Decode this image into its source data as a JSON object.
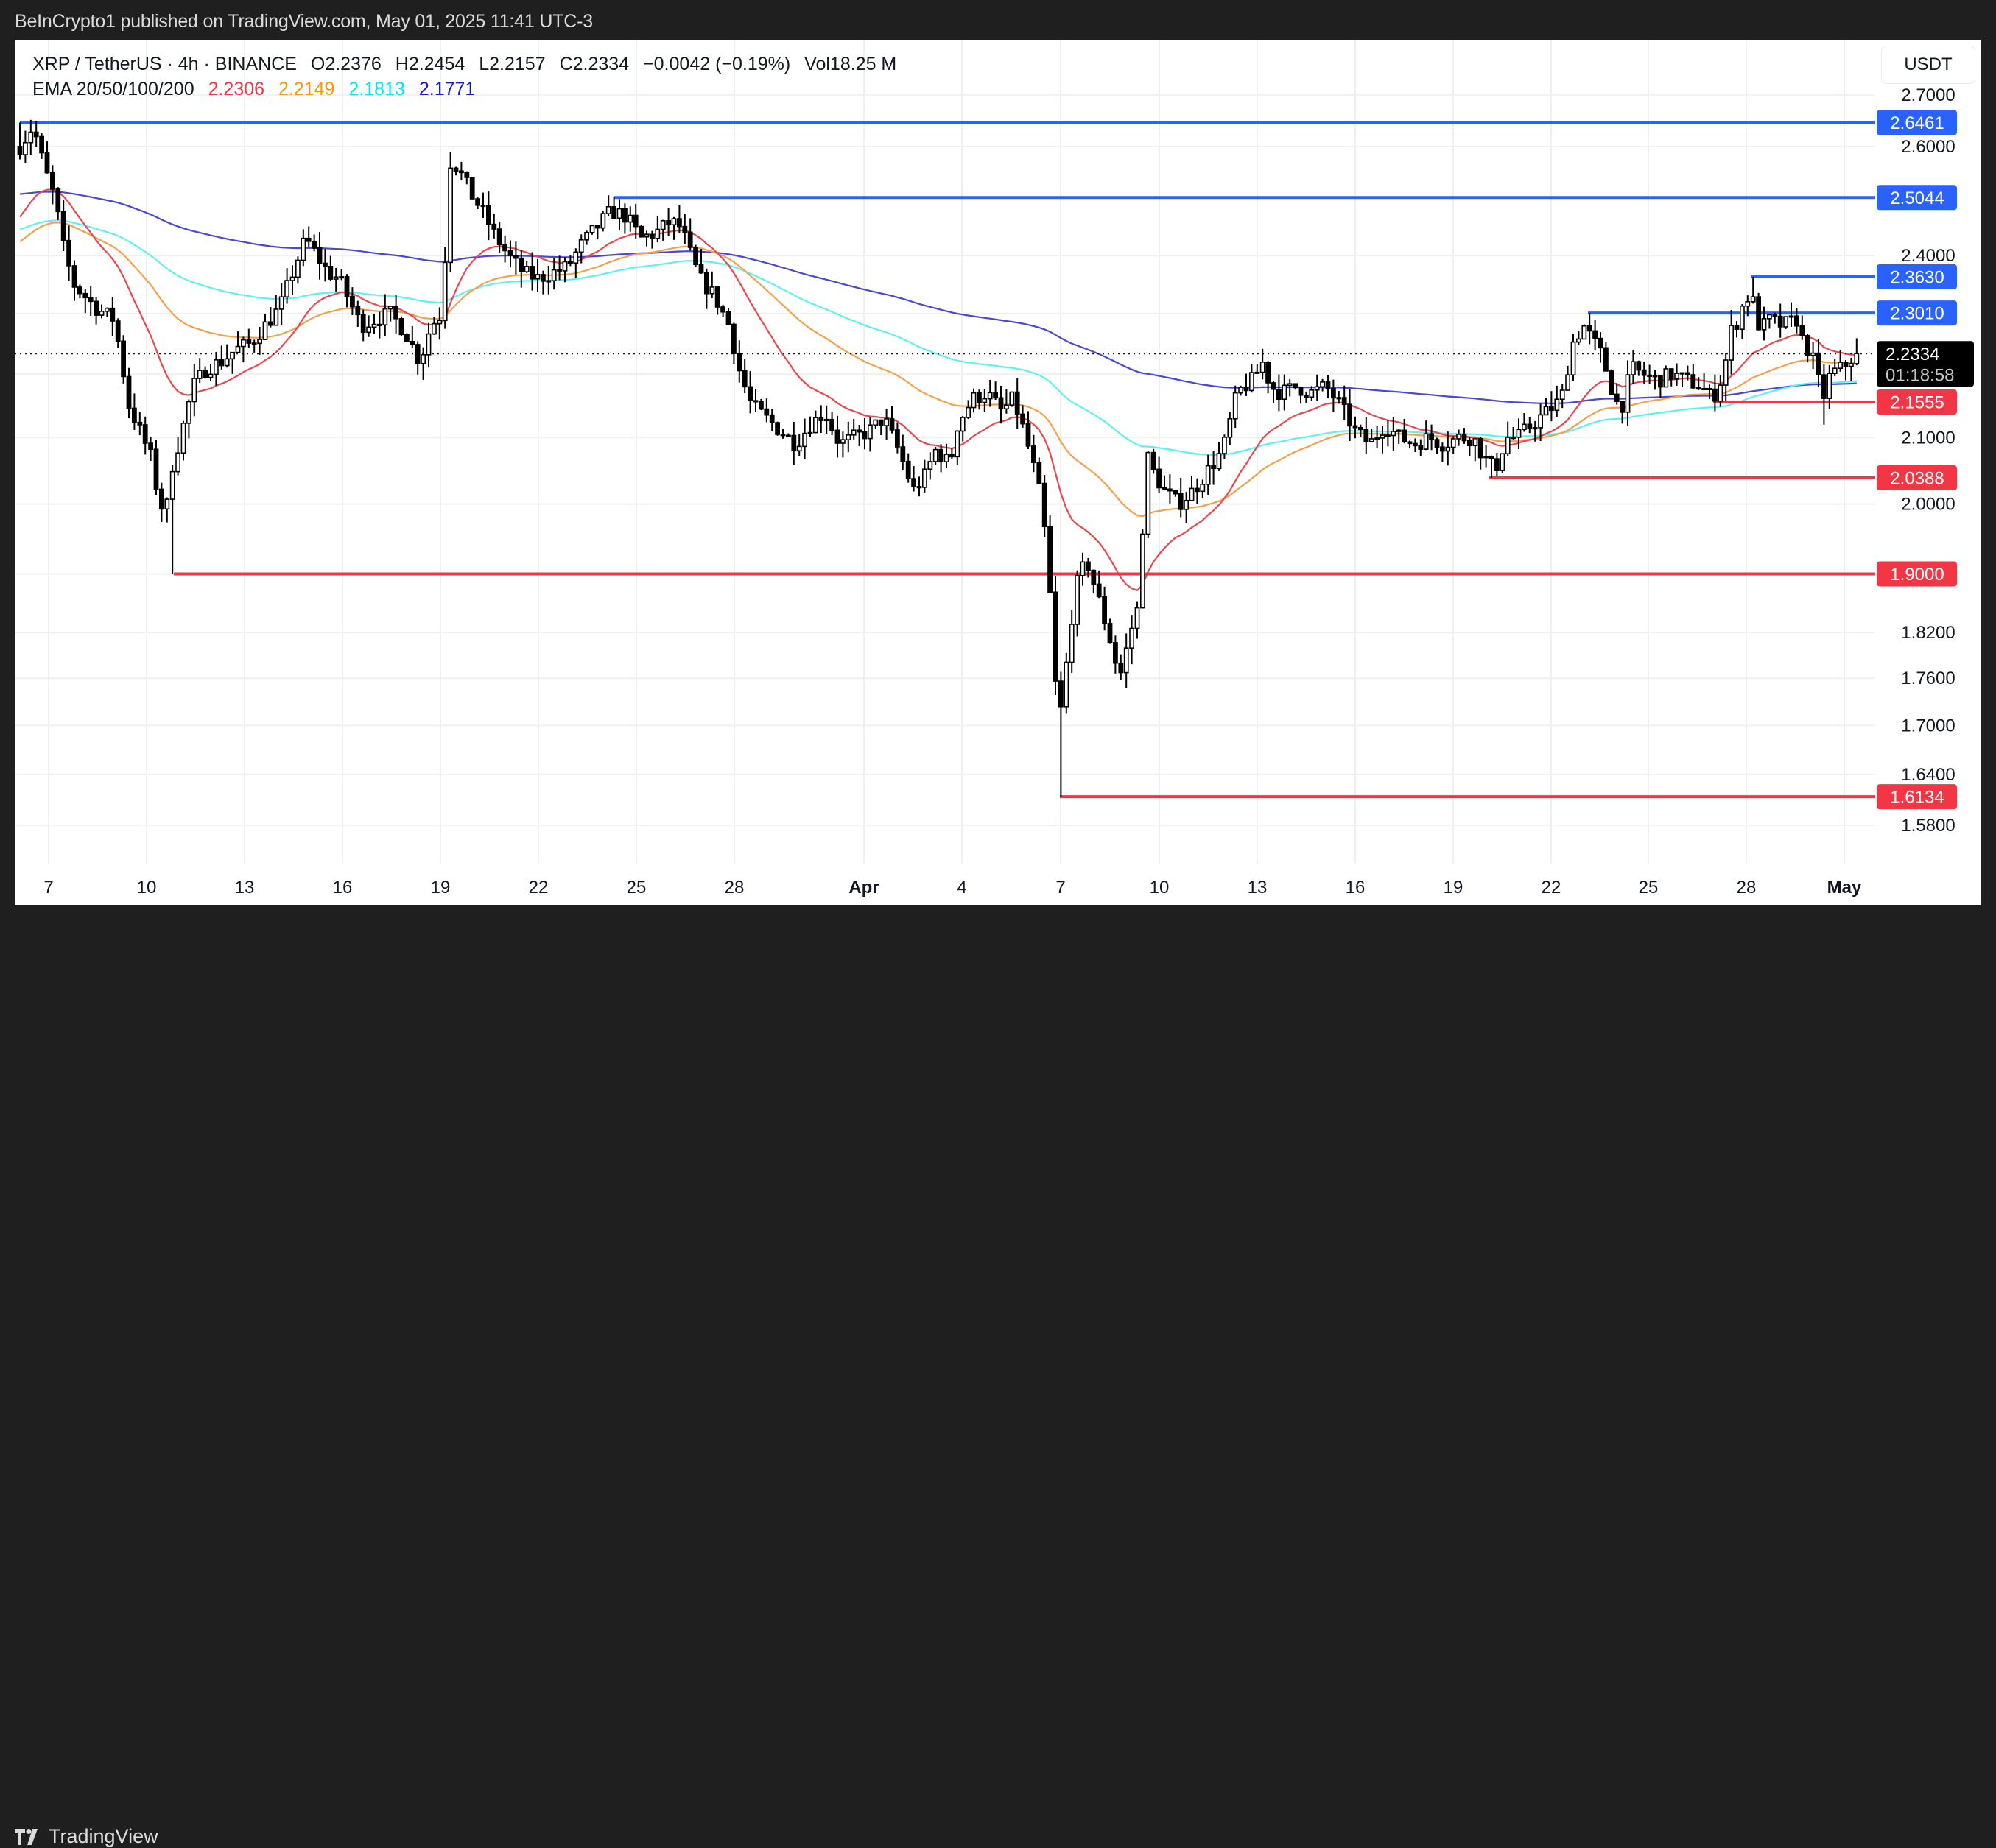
{
  "header": {
    "publisher_text": "BeInCrypto1 published on TradingView.com, May 01, 2025 11:41 UTC-3"
  },
  "legend": {
    "symbol": "XRP / TetherUS · 4h · BINANCE",
    "open": "O2.2376",
    "high": "H2.2454",
    "low": "L2.2157",
    "close": "C2.2334",
    "change": "−0.0042 (−0.19%)",
    "volume": "Vol18.25 M",
    "ema_label": "EMA 20/50/100/200",
    "ema_values": [
      {
        "period": 20,
        "value": "2.2306",
        "color": "#f23645"
      },
      {
        "period": 50,
        "value": "2.2149",
        "color": "#ff9800"
      },
      {
        "period": 100,
        "value": "2.1813",
        "color": "#00e5ff"
      },
      {
        "period": 200,
        "value": "2.1771",
        "color": "#1a1acc"
      }
    ]
  },
  "currency_button": "USDT",
  "footer": {
    "brand": "TradingView"
  },
  "colors": {
    "resistance": "#2962ff",
    "support": "#f23645",
    "candle": "#000000",
    "grid": "#f0f0f0",
    "ema20": "#e8494f",
    "ema50": "#f7a04a",
    "ema100": "#5ff0f0",
    "ema200": "#4a46d6"
  },
  "chart_data": {
    "type": "candlestick",
    "title": "XRP / TetherUS · 4h · BINANCE",
    "xlabel": "",
    "ylabel": "USDT",
    "yscale": "log",
    "ylim": [
      1.55,
      2.72
    ],
    "y_ticks": [
      "2.7000",
      "2.6000",
      "2.4000",
      "2.1000",
      "2.0000",
      "1.8200",
      "1.7600",
      "1.7000",
      "1.6400",
      "1.5800"
    ],
    "x_ticks": [
      {
        "label": "7",
        "x": 66
      },
      {
        "label": "10",
        "x": 199
      },
      {
        "label": "13",
        "x": 332
      },
      {
        "label": "16",
        "x": 465
      },
      {
        "label": "19",
        "x": 598
      },
      {
        "label": "22",
        "x": 731
      },
      {
        "label": "25",
        "x": 864
      },
      {
        "label": "28",
        "x": 997
      },
      {
        "label": "Apr",
        "x": 1173,
        "bold": true
      },
      {
        "label": "4",
        "x": 1306
      },
      {
        "label": "7",
        "x": 1440
      },
      {
        "label": "10",
        "x": 1574
      },
      {
        "label": "13",
        "x": 1707
      },
      {
        "label": "16",
        "x": 1840
      },
      {
        "label": "19",
        "x": 1973
      },
      {
        "label": "22",
        "x": 2106
      },
      {
        "label": "25",
        "x": 2238
      },
      {
        "label": "28",
        "x": 2371
      },
      {
        "label": "May",
        "x": 2504,
        "bold": true
      }
    ],
    "current_price": {
      "value": "2.2334",
      "countdown": "01:18:58"
    },
    "levels": [
      {
        "price": 2.6461,
        "label": "2.6461",
        "type": "resistance",
        "start_x": 27
      },
      {
        "price": 2.5044,
        "label": "2.5044",
        "type": "resistance",
        "start_x": 833
      },
      {
        "price": 2.363,
        "label": "2.3630",
        "type": "resistance",
        "start_x": 2378
      },
      {
        "price": 2.301,
        "label": "2.3010",
        "type": "resistance",
        "start_x": 2156
      },
      {
        "price": 2.1555,
        "label": "2.1555",
        "type": "support",
        "start_x": 2326
      },
      {
        "price": 2.0388,
        "label": "2.0388",
        "type": "support",
        "start_x": 2022
      },
      {
        "price": 1.9,
        "label": "1.9000",
        "type": "support",
        "start_x": 236
      },
      {
        "price": 1.6134,
        "label": "1.6134",
        "type": "support",
        "start_x": 1439
      }
    ],
    "ema_seed": {
      "ema20": 2.457,
      "ema50": 2.418,
      "ema100": 2.444,
      "ema200": 2.51
    },
    "price_path": [
      [
        27,
        2.6
      ],
      [
        45,
        2.64
      ],
      [
        60,
        2.56
      ],
      [
        75,
        2.5
      ],
      [
        85,
        2.42
      ],
      [
        100,
        2.35
      ],
      [
        130,
        2.31
      ],
      [
        155,
        2.29
      ],
      [
        175,
        2.15
      ],
      [
        190,
        2.11
      ],
      [
        205,
        2.07
      ],
      [
        215,
        2.01
      ],
      [
        225,
        1.98
      ],
      [
        232,
        2.05
      ],
      [
        245,
        2.1
      ],
      [
        262,
        2.18
      ],
      [
        280,
        2.21
      ],
      [
        300,
        2.22
      ],
      [
        320,
        2.24
      ],
      [
        340,
        2.25
      ],
      [
        360,
        2.28
      ],
      [
        380,
        2.31
      ],
      [
        400,
        2.38
      ],
      [
        415,
        2.43
      ],
      [
        430,
        2.4
      ],
      [
        445,
        2.37
      ],
      [
        460,
        2.36
      ],
      [
        475,
        2.32
      ],
      [
        490,
        2.28
      ],
      [
        510,
        2.29
      ],
      [
        530,
        2.3
      ],
      [
        550,
        2.27
      ],
      [
        570,
        2.22
      ],
      [
        585,
        2.28
      ],
      [
        600,
        2.3
      ],
      [
        612,
        2.58
      ],
      [
        625,
        2.55
      ],
      [
        640,
        2.51
      ],
      [
        655,
        2.48
      ],
      [
        670,
        2.44
      ],
      [
        690,
        2.4
      ],
      [
        710,
        2.37
      ],
      [
        730,
        2.36
      ],
      [
        750,
        2.37
      ],
      [
        770,
        2.38
      ],
      [
        790,
        2.42
      ],
      [
        810,
        2.45
      ],
      [
        830,
        2.48
      ],
      [
        850,
        2.47
      ],
      [
        870,
        2.43
      ],
      [
        890,
        2.44
      ],
      [
        910,
        2.46
      ],
      [
        925,
        2.45
      ],
      [
        935,
        2.41
      ],
      [
        950,
        2.36
      ],
      [
        970,
        2.33
      ],
      [
        990,
        2.28
      ],
      [
        1005,
        2.2
      ],
      [
        1020,
        2.15
      ],
      [
        1040,
        2.13
      ],
      [
        1060,
        2.11
      ],
      [
        1080,
        2.09
      ],
      [
        1100,
        2.12
      ],
      [
        1120,
        2.14
      ],
      [
        1140,
        2.09
      ],
      [
        1160,
        2.1
      ],
      [
        1180,
        2.11
      ],
      [
        1200,
        2.13
      ],
      [
        1220,
        2.08
      ],
      [
        1240,
        2.02
      ],
      [
        1255,
        2.04
      ],
      [
        1270,
        2.08
      ],
      [
        1290,
        2.06
      ],
      [
        1300,
        2.12
      ],
      [
        1320,
        2.16
      ],
      [
        1340,
        2.17
      ],
      [
        1360,
        2.14
      ],
      [
        1375,
        2.16
      ],
      [
        1385,
        2.13
      ],
      [
        1400,
        2.07
      ],
      [
        1415,
        2.0
      ],
      [
        1425,
        1.88
      ],
      [
        1435,
        1.72
      ],
      [
        1442,
        1.72
      ],
      [
        1450,
        1.8
      ],
      [
        1460,
        1.88
      ],
      [
        1475,
        1.92
      ],
      [
        1490,
        1.87
      ],
      [
        1510,
        1.8
      ],
      [
        1520,
        1.76
      ],
      [
        1530,
        1.8
      ],
      [
        1540,
        1.84
      ],
      [
        1548,
        1.86
      ],
      [
        1555,
        2.08
      ],
      [
        1565,
        2.05
      ],
      [
        1580,
        2.02
      ],
      [
        1600,
        2.0
      ],
      [
        1620,
        2.02
      ],
      [
        1640,
        2.05
      ],
      [
        1660,
        2.08
      ],
      [
        1680,
        2.17
      ],
      [
        1700,
        2.19
      ],
      [
        1715,
        2.22
      ],
      [
        1725,
        2.18
      ],
      [
        1740,
        2.17
      ],
      [
        1760,
        2.18
      ],
      [
        1780,
        2.17
      ],
      [
        1800,
        2.18
      ],
      [
        1820,
        2.15
      ],
      [
        1840,
        2.11
      ],
      [
        1860,
        2.09
      ],
      [
        1880,
        2.12
      ],
      [
        1900,
        2.1
      ],
      [
        1920,
        2.09
      ],
      [
        1940,
        2.1
      ],
      [
        1960,
        2.09
      ],
      [
        1980,
        2.1
      ],
      [
        2000,
        2.1
      ],
      [
        2015,
        2.07
      ],
      [
        2030,
        2.05
      ],
      [
        2045,
        2.1
      ],
      [
        2060,
        2.1
      ],
      [
        2080,
        2.12
      ],
      [
        2100,
        2.14
      ],
      [
        2120,
        2.16
      ],
      [
        2135,
        2.25
      ],
      [
        2150,
        2.28
      ],
      [
        2160,
        2.26
      ],
      [
        2175,
        2.23
      ],
      [
        2190,
        2.17
      ],
      [
        2200,
        2.14
      ],
      [
        2215,
        2.21
      ],
      [
        2230,
        2.2
      ],
      [
        2250,
        2.19
      ],
      [
        2270,
        2.2
      ],
      [
        2290,
        2.19
      ],
      [
        2310,
        2.18
      ],
      [
        2325,
        2.16
      ],
      [
        2340,
        2.2
      ],
      [
        2350,
        2.27
      ],
      [
        2360,
        2.29
      ],
      [
        2370,
        2.33
      ],
      [
        2380,
        2.32
      ],
      [
        2390,
        2.27
      ],
      [
        2400,
        2.29
      ],
      [
        2420,
        2.28
      ],
      [
        2440,
        2.29
      ],
      [
        2445,
        2.26
      ],
      [
        2460,
        2.23
      ],
      [
        2475,
        2.16
      ],
      [
        2485,
        2.2
      ],
      [
        2500,
        2.21
      ],
      [
        2510,
        2.22
      ],
      [
        2520,
        2.2334
      ]
    ],
    "wick_extremes": [
      {
        "x": 27,
        "high": 2.6461
      },
      {
        "x": 612,
        "high": 2.59
      },
      {
        "x": 833,
        "high": 2.5044
      },
      {
        "x": 236,
        "low": 1.9
      },
      {
        "x": 1439,
        "low": 1.6134
      },
      {
        "x": 2022,
        "low": 2.0388
      },
      {
        "x": 2156,
        "high": 2.301
      },
      {
        "x": 2378,
        "high": 2.363
      },
      {
        "x": 2480,
        "low": 2.12
      }
    ]
  }
}
